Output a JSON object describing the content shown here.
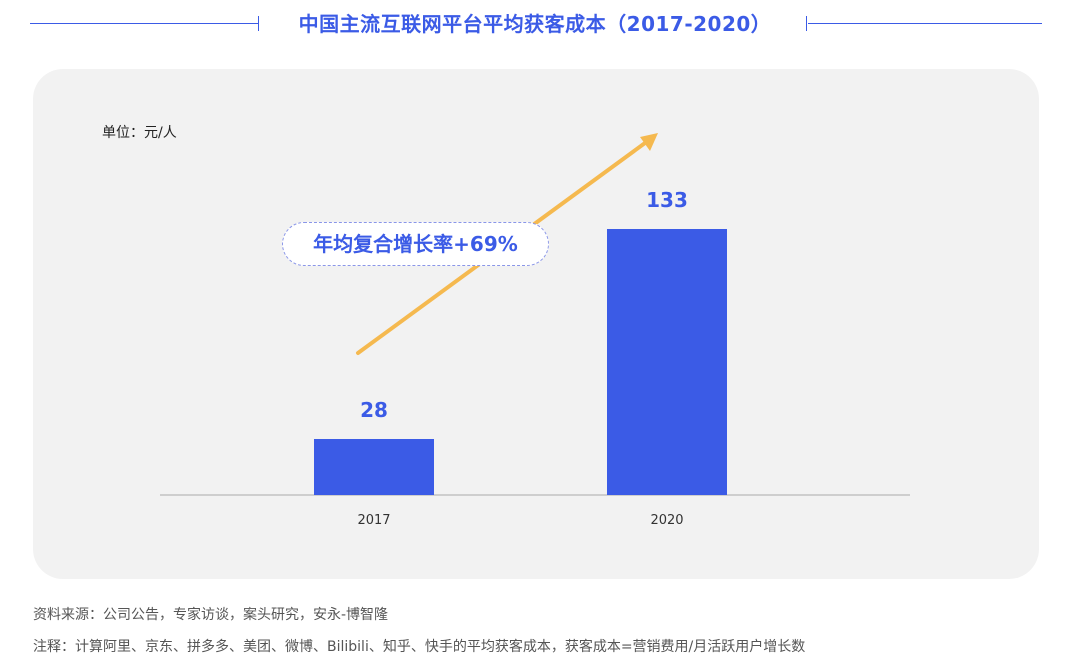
{
  "title": "中国主流互联网平台平均获客成本（2017-2020）",
  "unit_label": "单位：元/人",
  "annotation": "年均复合增长率+69%",
  "source": "资料来源：公司公告，专家访谈，案头研究，安永-博智隆",
  "note": "注释：计算阿里、京东、拼多多、美团、微博、Bilibili、知乎、快手的平均获客成本，获客成本=营销费用/月活跃用户增长数",
  "colors": {
    "bar": "#3b5be6",
    "arrow": "#f5b94f",
    "title": "#3b5be6",
    "panel": "#f2f2f2"
  },
  "chart_data": {
    "type": "bar",
    "categories": [
      "2017",
      "2020"
    ],
    "values": [
      28,
      133
    ],
    "data_labels": [
      "28",
      "133"
    ],
    "ylim": [
      0,
      160
    ],
    "grid": false,
    "xlabel": "",
    "ylabel": ""
  }
}
